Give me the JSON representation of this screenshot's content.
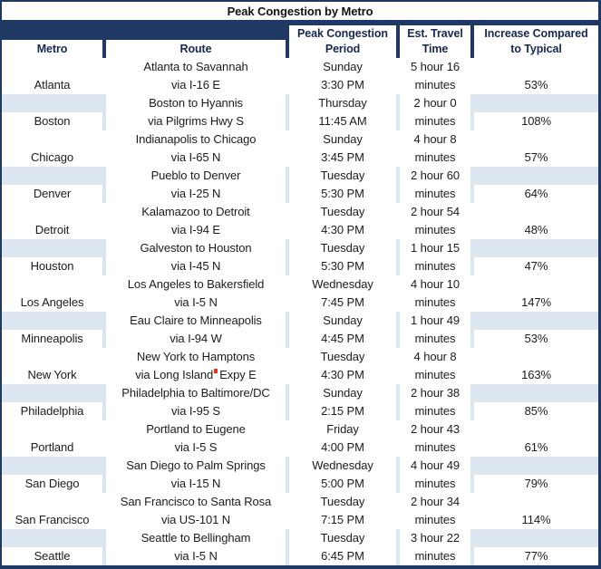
{
  "table": {
    "title": "Peak Congestion by Metro",
    "headers": [
      {
        "lines": [
          "Metro",
          ""
        ]
      },
      {
        "lines": [
          "Route",
          ""
        ]
      },
      {
        "lines": [
          "Peak Congestion",
          "Period"
        ]
      },
      {
        "lines": [
          "Est. Travel",
          "Time"
        ]
      },
      {
        "lines": [
          "Increase Compared",
          "to Typical"
        ]
      }
    ],
    "rows": [
      {
        "metro": "Atlanta",
        "route_line1": "Atlanta to Savannah",
        "route_via": "via I-16 E",
        "route_via_rest": "",
        "day": "Sunday",
        "clock": "3:30 PM",
        "travel_line1": "5 hour 16",
        "travel_line2": "minutes",
        "increase": "53%",
        "shaded": false,
        "marker": false
      },
      {
        "metro": "Boston",
        "route_line1": "Boston to Hyannis",
        "route_via": "via Pilgrims Hwy S",
        "route_via_rest": "",
        "day": "Thursday",
        "clock": "11:45 AM",
        "travel_line1": "2 hour 0",
        "travel_line2": "minutes",
        "increase": "108%",
        "shaded": true,
        "marker": false
      },
      {
        "metro": "Chicago",
        "route_line1": "Indianapolis to Chicago",
        "route_via": "via I-65 N",
        "route_via_rest": "",
        "day": "Sunday",
        "clock": "3:45 PM",
        "travel_line1": "4 hour 8",
        "travel_line2": "minutes",
        "increase": "57%",
        "shaded": false,
        "marker": false
      },
      {
        "metro": "Denver",
        "route_line1": "Pueblo to Denver",
        "route_via": "via I-25 N",
        "route_via_rest": "",
        "day": "Tuesday",
        "clock": "5:30 PM",
        "travel_line1": "2 hour 60",
        "travel_line2": "minutes",
        "increase": "64%",
        "shaded": true,
        "marker": false
      },
      {
        "metro": "Detroit",
        "route_line1": "Kalamazoo to Detroit",
        "route_via": "via I-94 E",
        "route_via_rest": "",
        "day": "Tuesday",
        "clock": "4:30 PM",
        "travel_line1": "2 hour 54",
        "travel_line2": "minutes",
        "increase": "48%",
        "shaded": false,
        "marker": false
      },
      {
        "metro": "Houston",
        "route_line1": "Galveston to Houston",
        "route_via": "via I-45 N",
        "route_via_rest": "",
        "day": "Tuesday",
        "clock": "5:30 PM",
        "travel_line1": "1 hour 15",
        "travel_line2": "minutes",
        "increase": "47%",
        "shaded": true,
        "marker": false
      },
      {
        "metro": "Los Angeles",
        "route_line1": "Los Angeles to Bakersfield",
        "route_via": "via I-5 N",
        "route_via_rest": "",
        "day": "Wednesday",
        "clock": "7:45 PM",
        "travel_line1": "4 hour 10",
        "travel_line2": "minutes",
        "increase": "147%",
        "shaded": false,
        "marker": false
      },
      {
        "metro": "Minneapolis",
        "route_line1": "Eau Claire to Minneapolis",
        "route_via": "via I-94 W",
        "route_via_rest": "",
        "day": "Sunday",
        "clock": "4:45 PM",
        "travel_line1": "1 hour 49",
        "travel_line2": "minutes",
        "increase": "53%",
        "shaded": true,
        "marker": false
      },
      {
        "metro": "New York",
        "route_line1": "New York to Hamptons",
        "route_via": "via Long Island",
        "route_via_rest": "Expy E",
        "day": "Tuesday",
        "clock": "4:30 PM",
        "travel_line1": "4 hour 8",
        "travel_line2": "minutes",
        "increase": "163%",
        "shaded": false,
        "marker": true
      },
      {
        "metro": "Philadelphia",
        "route_line1": "Philadelphia to Baltimore/DC",
        "route_via": "via I-95 S",
        "route_via_rest": "",
        "day": "Sunday",
        "clock": "2:15 PM",
        "travel_line1": "2 hour 38",
        "travel_line2": "minutes",
        "increase": "85%",
        "shaded": true,
        "marker": false
      },
      {
        "metro": "Portland",
        "route_line1": "Portland to Eugene",
        "route_via": "via I-5 S",
        "route_via_rest": "",
        "day": "Friday",
        "clock": "4:00 PM",
        "travel_line1": "2 hour 43",
        "travel_line2": "minutes",
        "increase": "61%",
        "shaded": false,
        "marker": false
      },
      {
        "metro": "San Diego",
        "route_line1": "San Diego to Palm Springs",
        "route_via": "via I-15 N",
        "route_via_rest": "",
        "day": "Wednesday",
        "clock": "5:00 PM",
        "travel_line1": "4 hour 49",
        "travel_line2": "minutes",
        "increase": "79%",
        "shaded": true,
        "marker": false
      },
      {
        "metro": "San Francisco",
        "route_line1": "San Francisco to Santa Rosa",
        "route_via": "via US-101 N",
        "route_via_rest": "",
        "day": "Tuesday",
        "clock": "7:15 PM",
        "travel_line1": "2 hour 34",
        "travel_line2": "minutes",
        "increase": "114%",
        "shaded": false,
        "marker": false
      },
      {
        "metro": "Seattle",
        "route_line1": "Seattle to Bellingham",
        "route_via": "via I-5 N",
        "route_via_rest": "",
        "day": "Tuesday",
        "clock": "6:45 PM",
        "travel_line1": "3 hour 22",
        "travel_line2": "minutes",
        "increase": "77%",
        "shaded": true,
        "marker": false
      }
    ]
  },
  "colors": {
    "border_navy": "#1F3864",
    "stripe_blue": "#DCE6F1",
    "cell_white": "#FFFFFF",
    "header_text": "#17294F",
    "body_text": "#1C1C1C",
    "marker_red": "#E0362C"
  },
  "chart_data": {
    "type": "table",
    "title": "Peak Congestion by Metro",
    "columns": [
      "Metro",
      "Route",
      "Peak Congestion Period",
      "Est. Travel Time",
      "Increase Compared to Typical"
    ],
    "rows": [
      [
        "Atlanta",
        "Atlanta to Savannah via I-16 E",
        "Sunday 3:30 PM",
        "5 hour 16 minutes",
        "53%"
      ],
      [
        "Boston",
        "Boston to Hyannis via Pilgrims Hwy S",
        "Thursday 11:45 AM",
        "2 hour 0 minutes",
        "108%"
      ],
      [
        "Chicago",
        "Indianapolis to Chicago via I-65 N",
        "Sunday 3:45 PM",
        "4 hour 8 minutes",
        "57%"
      ],
      [
        "Denver",
        "Pueblo to Denver via I-25 N",
        "Tuesday 5:30 PM",
        "2 hour 60 minutes",
        "64%"
      ],
      [
        "Detroit",
        "Kalamazoo to Detroit via I-94 E",
        "Tuesday 4:30 PM",
        "2 hour 54 minutes",
        "48%"
      ],
      [
        "Houston",
        "Galveston to Houston via I-45 N",
        "Tuesday 5:30 PM",
        "1 hour 15 minutes",
        "47%"
      ],
      [
        "Los Angeles",
        "Los Angeles to Bakersfield via I-5 N",
        "Wednesday 7:45 PM",
        "4 hour 10 minutes",
        "147%"
      ],
      [
        "Minneapolis",
        "Eau Claire to Minneapolis via I-94 W",
        "Sunday 4:45 PM",
        "1 hour 49 minutes",
        "53%"
      ],
      [
        "New York",
        "New York to Hamptons via Long Island Expy E",
        "Tuesday 4:30 PM",
        "4 hour 8 minutes",
        "163%"
      ],
      [
        "Philadelphia",
        "Philadelphia to Baltimore/DC via I-95 S",
        "Sunday 2:15 PM",
        "2 hour 38 minutes",
        "85%"
      ],
      [
        "Portland",
        "Portland to Eugene via I-5 S",
        "Friday 4:00 PM",
        "2 hour 43 minutes",
        "61%"
      ],
      [
        "San Diego",
        "San Diego to Palm Springs via I-15 N",
        "Wednesday 5:00 PM",
        "4 hour 49 minutes",
        "79%"
      ],
      [
        "San Francisco",
        "San Francisco to Santa Rosa via US-101 N",
        "Tuesday 7:15 PM",
        "2 hour 34 minutes",
        "114%"
      ],
      [
        "Seattle",
        "Seattle to Bellingham via I-5 N",
        "Tuesday 6:45 PM",
        "3 hour 22 minutes",
        "77%"
      ]
    ]
  }
}
